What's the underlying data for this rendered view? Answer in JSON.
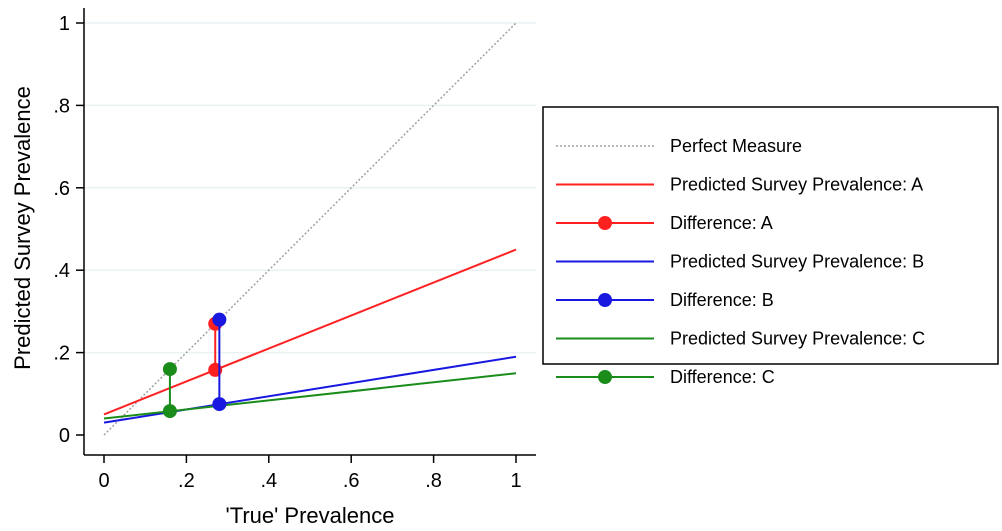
{
  "chart_data": {
    "type": "line",
    "xlabel": "'True' Prevalence",
    "ylabel": "Predicted Survey Prevalence",
    "xlim": [
      0,
      1
    ],
    "ylim": [
      0,
      1
    ],
    "x_ticks": [
      0,
      0.2,
      0.4,
      0.6,
      0.8,
      1
    ],
    "x_tick_labels": [
      "0",
      ".2",
      ".4",
      ".6",
      ".8",
      "1"
    ],
    "y_ticks": [
      0,
      0.2,
      0.4,
      0.6,
      0.8,
      1
    ],
    "y_tick_labels": [
      "0",
      ".2",
      ".4",
      ".6",
      ".8",
      "1"
    ],
    "grid": "horizontal",
    "legend_position": "right",
    "series": [
      {
        "name": "Perfect Measure",
        "kind": "line",
        "style": "dotted",
        "color": "#a0a0a0",
        "x": [
          0,
          1
        ],
        "y": [
          0,
          1
        ]
      },
      {
        "name": "Predicted Survey Prevalence: A",
        "kind": "line",
        "color": "#ff2020",
        "x": [
          0,
          1
        ],
        "y": [
          0.05,
          0.45
        ]
      },
      {
        "name": "Difference: A",
        "kind": "segment",
        "color": "#ff2020",
        "x": [
          0.27,
          0.27
        ],
        "y": [
          0.158,
          0.27
        ]
      },
      {
        "name": "Predicted Survey Prevalence: B",
        "kind": "line",
        "color": "#1818e0",
        "x": [
          0,
          1
        ],
        "y": [
          0.03,
          0.19
        ]
      },
      {
        "name": "Difference: B",
        "kind": "segment",
        "color": "#1818e0",
        "x": [
          0.28,
          0.28
        ],
        "y": [
          0.075,
          0.28
        ]
      },
      {
        "name": "Predicted Survey Prevalence: C",
        "kind": "line",
        "color": "#1a8c1a",
        "x": [
          0,
          1
        ],
        "y": [
          0.04,
          0.15
        ]
      },
      {
        "name": "Difference: C",
        "kind": "segment",
        "color": "#1a8c1a",
        "x": [
          0.16,
          0.16
        ],
        "y": [
          0.058,
          0.16
        ]
      }
    ]
  }
}
